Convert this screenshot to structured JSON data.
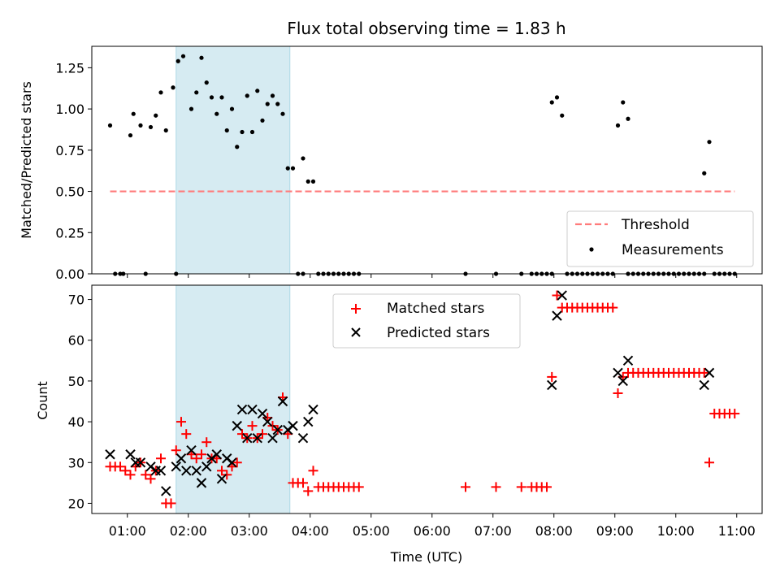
{
  "chart_data": [
    {
      "type": "scatter",
      "title": "Flux total observing time = 1.83 h",
      "xlabel": "",
      "ylabel": "Matched/Predicted stars",
      "xlim": [
        "00:25",
        "11:25"
      ],
      "ylim": [
        0,
        1.38
      ],
      "yticks": [
        "0.00",
        "0.25",
        "0.50",
        "0.75",
        "1.00",
        "1.25"
      ],
      "shaded_interval": [
        "01:48",
        "03:40"
      ],
      "legend_position": "lower-right",
      "series": [
        {
          "name": "Threshold",
          "style": "dashed-line",
          "color": "#ff7b7b",
          "x": [
            "00:43",
            "10:58"
          ],
          "y": [
            0.5,
            0.5
          ]
        },
        {
          "name": "Measurements",
          "style": "dot",
          "color": "#000000",
          "x": [
            "00:43",
            "01:03",
            "01:06",
            "01:13",
            "01:23",
            "01:28",
            "01:33",
            "01:38",
            "01:45",
            "01:50",
            "01:55",
            "02:03",
            "02:08",
            "02:13",
            "02:18",
            "02:23",
            "02:28",
            "02:33",
            "02:38",
            "02:43",
            "02:48",
            "02:53",
            "02:58",
            "03:03",
            "03:08",
            "03:13",
            "03:18",
            "03:23",
            "03:28",
            "03:33",
            "03:38",
            "03:43",
            "03:53",
            "03:58",
            "04:03",
            "00:48",
            "00:53",
            "00:56",
            "01:18",
            "01:48",
            "03:48",
            "03:53",
            "04:08",
            "04:13",
            "04:18",
            "04:23",
            "04:28",
            "04:33",
            "04:38",
            "04:43",
            "04:48",
            "06:33",
            "07:03",
            "07:28",
            "07:38",
            "07:43",
            "07:48",
            "07:53",
            "07:58",
            "08:13",
            "08:18",
            "08:23",
            "08:28",
            "08:33",
            "08:38",
            "08:43",
            "08:48",
            "08:53",
            "08:58",
            "09:13",
            "09:18",
            "09:23",
            "09:28",
            "09:33",
            "09:38",
            "09:43",
            "09:48",
            "09:53",
            "09:58",
            "10:03",
            "10:08",
            "10:13",
            "10:18",
            "10:23",
            "10:28",
            "10:38",
            "10:43",
            "10:48",
            "10:53",
            "10:58",
            "07:58",
            "08:03",
            "08:08",
            "09:03",
            "09:08",
            "09:13",
            "10:28",
            "10:33"
          ],
          "y": [
            0.9,
            0.84,
            0.97,
            0.9,
            0.89,
            0.96,
            1.1,
            0.87,
            1.13,
            1.29,
            1.32,
            1.0,
            1.1,
            1.31,
            1.16,
            1.07,
            0.97,
            1.07,
            0.87,
            1.0,
            0.77,
            0.86,
            1.08,
            0.86,
            1.11,
            0.93,
            1.03,
            1.08,
            1.03,
            0.97,
            0.64,
            0.64,
            0.7,
            0.56,
            0.56,
            0,
            0,
            0,
            0,
            0,
            0,
            0,
            0,
            0,
            0,
            0,
            0,
            0,
            0,
            0,
            0,
            0,
            0,
            0,
            0,
            0,
            0,
            0,
            0,
            0,
            0,
            0,
            0,
            0,
            0,
            0,
            0,
            0,
            0,
            0,
            0,
            0,
            0,
            0,
            0,
            0,
            0,
            0,
            0,
            0,
            0,
            0,
            0,
            0,
            0,
            0,
            0,
            0,
            0,
            0,
            1.04,
            1.07,
            0.96,
            0.9,
            1.04,
            0.94,
            0.61,
            0.8
          ]
        }
      ]
    },
    {
      "type": "scatter",
      "title": "",
      "xlabel": "Time (UTC)",
      "ylabel": "Count",
      "xlim": [
        "00:25",
        "11:25"
      ],
      "ylim": [
        17.5,
        73.5
      ],
      "xticks": [
        "01:00",
        "02:00",
        "03:00",
        "04:00",
        "05:00",
        "06:00",
        "07:00",
        "08:00",
        "09:00",
        "10:00",
        "11:00"
      ],
      "yticks": [
        "20",
        "30",
        "40",
        "50",
        "60",
        "70"
      ],
      "shaded_interval": [
        "01:48",
        "03:40"
      ],
      "legend_position": "upper-center",
      "series": [
        {
          "name": "Matched stars",
          "style": "plus",
          "color": "#ff0000",
          "x": [
            "00:43",
            "00:48",
            "00:53",
            "00:58",
            "01:03",
            "01:08",
            "01:13",
            "01:18",
            "01:23",
            "01:28",
            "01:33",
            "01:38",
            "01:43",
            "01:48",
            "01:53",
            "01:58",
            "02:03",
            "02:08",
            "02:13",
            "02:18",
            "02:23",
            "02:28",
            "02:33",
            "02:38",
            "02:43",
            "02:48",
            "02:53",
            "02:58",
            "03:03",
            "03:08",
            "03:13",
            "03:18",
            "03:23",
            "03:28",
            "03:33",
            "03:38",
            "03:43",
            "03:48",
            "03:53",
            "03:58",
            "04:03",
            "04:08",
            "04:13",
            "04:18",
            "04:23",
            "04:28",
            "04:33",
            "04:38",
            "04:43",
            "04:48",
            "06:33",
            "07:03",
            "07:28",
            "07:38",
            "07:43",
            "07:48",
            "07:53",
            "07:58",
            "08:03",
            "08:08",
            "08:13",
            "08:18",
            "08:23",
            "08:28",
            "08:33",
            "08:38",
            "08:43",
            "08:48",
            "08:53",
            "08:58",
            "09:03",
            "09:08",
            "09:13",
            "09:18",
            "09:23",
            "09:28",
            "09:33",
            "09:38",
            "09:43",
            "09:48",
            "09:53",
            "09:58",
            "10:03",
            "10:08",
            "10:13",
            "10:18",
            "10:23",
            "10:28",
            "10:33",
            "10:38",
            "10:43",
            "10:48",
            "10:53",
            "10:58"
          ],
          "y": [
            29,
            29,
            29,
            28,
            27,
            29,
            30,
            27,
            26,
            28,
            31,
            20,
            20,
            33,
            40,
            37,
            32,
            31,
            32,
            35,
            31,
            31,
            28,
            27,
            29,
            30,
            37,
            36,
            39,
            36,
            37,
            41,
            39,
            38,
            46,
            37,
            25,
            25,
            25,
            23,
            28,
            24,
            24,
            24,
            24,
            24,
            24,
            24,
            24,
            24,
            24,
            24,
            24,
            24,
            24,
            24,
            24,
            51,
            71,
            68,
            68,
            68,
            68,
            68,
            68,
            68,
            68,
            68,
            68,
            68,
            47,
            51,
            52,
            52,
            52,
            52,
            52,
            52,
            52,
            52,
            52,
            52,
            52,
            52,
            52,
            52,
            52,
            52,
            30,
            42,
            42,
            42,
            42,
            42
          ]
        },
        {
          "name": "Predicted stars",
          "style": "x",
          "color": "#000000",
          "x": [
            "00:43",
            "01:03",
            "01:08",
            "01:13",
            "01:23",
            "01:28",
            "01:33",
            "01:38",
            "01:48",
            "01:53",
            "01:58",
            "02:03",
            "02:08",
            "02:13",
            "02:18",
            "02:23",
            "02:28",
            "02:33",
            "02:38",
            "02:43",
            "02:48",
            "02:53",
            "02:58",
            "03:03",
            "03:08",
            "03:13",
            "03:18",
            "03:23",
            "03:28",
            "03:33",
            "03:38",
            "03:43",
            "03:53",
            "03:58",
            "04:03",
            "07:58",
            "08:03",
            "08:08",
            "09:03",
            "09:08",
            "09:13",
            "10:28",
            "10:33"
          ],
          "y": [
            32,
            32,
            30,
            30,
            29,
            28,
            28,
            23,
            29,
            31,
            28,
            33,
            28,
            25,
            29,
            31,
            32,
            26,
            31,
            30,
            39,
            43,
            36,
            43,
            36,
            42,
            40,
            36,
            38,
            45,
            38,
            39,
            36,
            40,
            43,
            49,
            66,
            71,
            52,
            50,
            55,
            49,
            52
          ]
        }
      ]
    }
  ]
}
